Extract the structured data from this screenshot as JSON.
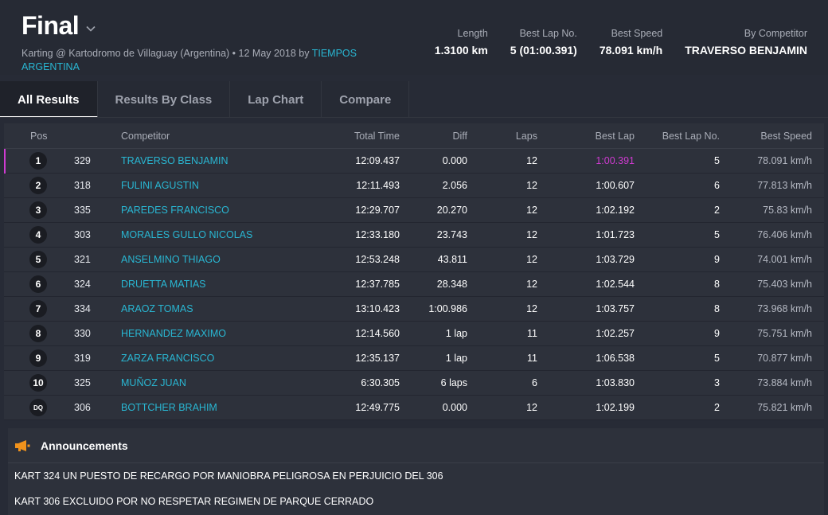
{
  "header": {
    "title": "Final",
    "subtitle_main": "Karting @ Kartodromo de Villaguay (Argentina) • 12 May 2018 by",
    "subtitle_org": "TIEMPOS ARGENTINA",
    "stats": [
      {
        "label": "Length",
        "value": "1.3100 km"
      },
      {
        "label": "Best Lap No.",
        "value": "5 (01:00.391)"
      },
      {
        "label": "Best Speed",
        "value": "78.091 km/h"
      },
      {
        "label": "By Competitor",
        "value": "TRAVERSO BENJAMIN"
      }
    ]
  },
  "tabs": [
    "All Results",
    "Results By Class",
    "Lap Chart",
    "Compare"
  ],
  "active_tab": "All Results",
  "table": {
    "headers": {
      "pos": "Pos",
      "competitor": "Competitor",
      "total_time": "Total Time",
      "diff": "Diff",
      "laps": "Laps",
      "best_lap": "Best Lap",
      "best_lap_no": "Best Lap No.",
      "best_speed": "Best Speed"
    },
    "rows": [
      {
        "pos": "1",
        "num": "329",
        "competitor": "TRAVERSO BENJAMIN",
        "total": "12:09.437",
        "diff": "0.000",
        "laps": "12",
        "best_lap": "1:00.391",
        "best_lap_no": "5",
        "speed": "78.091 km/h"
      },
      {
        "pos": "2",
        "num": "318",
        "competitor": "FULINI AGUSTIN",
        "total": "12:11.493",
        "diff": "2.056",
        "laps": "12",
        "best_lap": "1:00.607",
        "best_lap_no": "6",
        "speed": "77.813 km/h"
      },
      {
        "pos": "3",
        "num": "335",
        "competitor": "PAREDES FRANCISCO",
        "total": "12:29.707",
        "diff": "20.270",
        "laps": "12",
        "best_lap": "1:02.192",
        "best_lap_no": "2",
        "speed": "75.83 km/h"
      },
      {
        "pos": "4",
        "num": "303",
        "competitor": "MORALES GULLO NICOLAS",
        "total": "12:33.180",
        "diff": "23.743",
        "laps": "12",
        "best_lap": "1:01.723",
        "best_lap_no": "5",
        "speed": "76.406 km/h"
      },
      {
        "pos": "5",
        "num": "321",
        "competitor": "ANSELMINO THIAGO",
        "total": "12:53.248",
        "diff": "43.811",
        "laps": "12",
        "best_lap": "1:03.729",
        "best_lap_no": "9",
        "speed": "74.001 km/h"
      },
      {
        "pos": "6",
        "num": "324",
        "competitor": "DRUETTA MATIAS",
        "total": "12:37.785",
        "diff": "28.348",
        "laps": "12",
        "best_lap": "1:02.544",
        "best_lap_no": "8",
        "speed": "75.403 km/h"
      },
      {
        "pos": "7",
        "num": "334",
        "competitor": "ARAOZ TOMAS",
        "total": "13:10.423",
        "diff": "1:00.986",
        "laps": "12",
        "best_lap": "1:03.757",
        "best_lap_no": "8",
        "speed": "73.968 km/h"
      },
      {
        "pos": "8",
        "num": "330",
        "competitor": "HERNANDEZ MAXIMO",
        "total": "12:14.560",
        "diff": "1 lap",
        "laps": "11",
        "best_lap": "1:02.257",
        "best_lap_no": "9",
        "speed": "75.751 km/h"
      },
      {
        "pos": "9",
        "num": "319",
        "competitor": "ZARZA FRANCISCO",
        "total": "12:35.137",
        "diff": "1 lap",
        "laps": "11",
        "best_lap": "1:06.538",
        "best_lap_no": "5",
        "speed": "70.877 km/h"
      },
      {
        "pos": "10",
        "num": "325",
        "competitor": "MUÑOZ JUAN",
        "total": "6:30.305",
        "diff": "6 laps",
        "laps": "6",
        "best_lap": "1:03.830",
        "best_lap_no": "3",
        "speed": "73.884 km/h"
      },
      {
        "pos": "DQ",
        "num": "306",
        "competitor": "BOTTCHER BRAHIM",
        "total": "12:49.775",
        "diff": "0.000",
        "laps": "12",
        "best_lap": "1:02.199",
        "best_lap_no": "2",
        "speed": "75.821 km/h"
      }
    ]
  },
  "announcements": {
    "title": "Announcements",
    "items": [
      "KART 324 UN PUESTO DE RECARGO POR MANIOBRA PELIGROSA EN PERJUICIO DEL 306",
      "KART 306 EXCLUIDO POR NO RESPETAR REGIMEN DE PARQUE CERRADO"
    ]
  },
  "colors": {
    "accent": "#29b7d3",
    "best_lap_highlight": "#cf3bd1",
    "announcement_icon": "#f0921c"
  },
  "icons": {
    "title_dropdown": "chevron-down-icon",
    "announcements": "megaphone-icon"
  }
}
